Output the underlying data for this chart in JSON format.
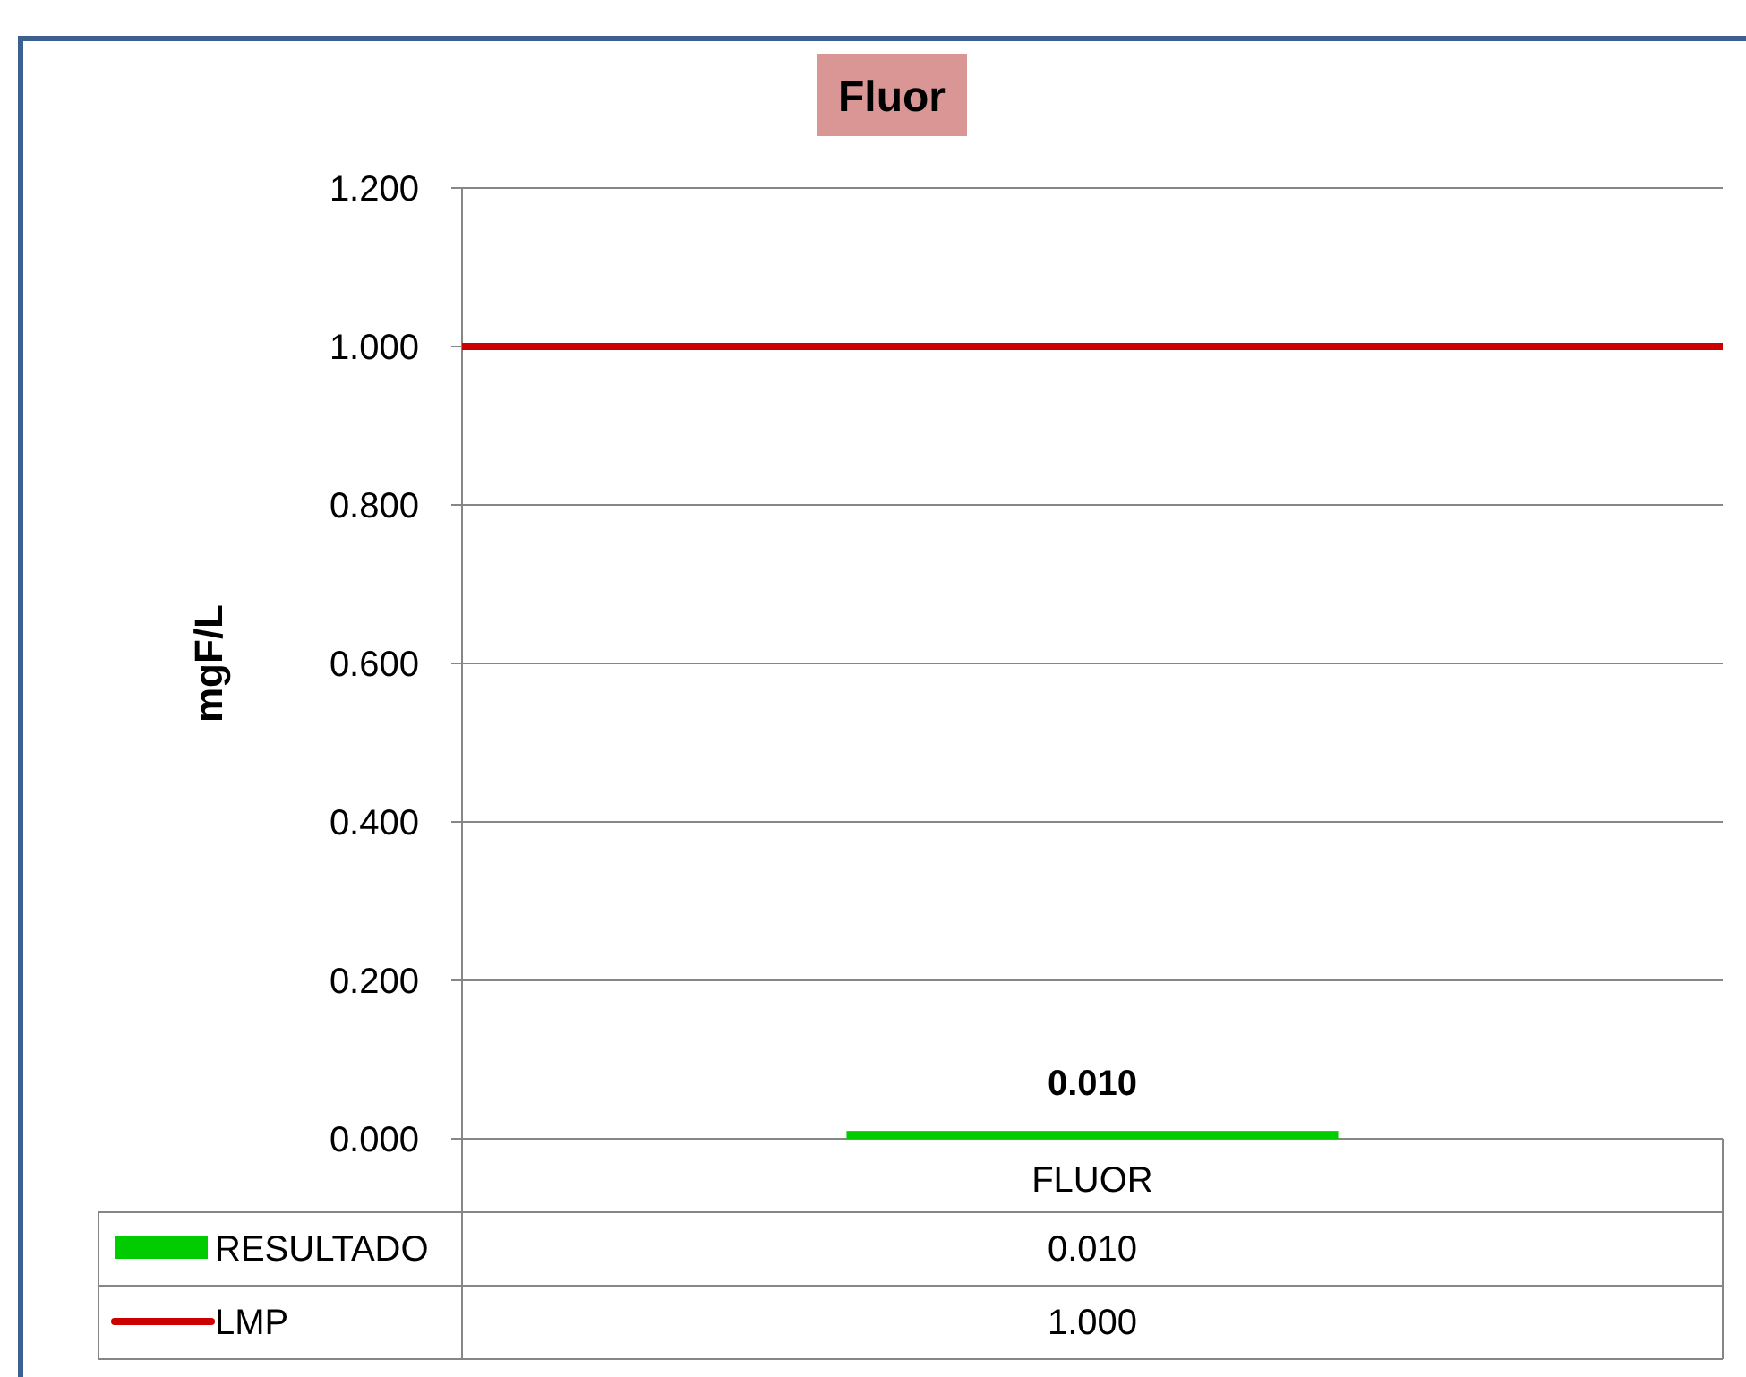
{
  "chart_data": {
    "type": "bar",
    "title": "Fluor",
    "ylabel": "mgF/L",
    "categories": [
      "FLUOR"
    ],
    "series": [
      {
        "name": "RESULTADO",
        "color": "#00cc00",
        "values": [
          0.01
        ],
        "value_labels": [
          "0.010"
        ]
      }
    ],
    "ref_lines": [
      {
        "axis": "y",
        "value": 1.0,
        "label": "LMP",
        "color": "#cc0000"
      }
    ],
    "annotations": [
      "1.000"
    ],
    "ylim": [
      0,
      1.2
    ],
    "yticks": [
      {
        "value": 0,
        "label": "0.000"
      },
      {
        "value": 0.2,
        "label": "0.200"
      },
      {
        "value": 0.4,
        "label": "0.400"
      },
      {
        "value": 0.6,
        "label": "0.600"
      },
      {
        "value": 0.8,
        "label": "0.800"
      },
      {
        "value": 1.0,
        "label": "1.000"
      },
      {
        "value": 1.2,
        "label": "1.200"
      }
    ],
    "grid": "y",
    "legend": "bottom"
  }
}
